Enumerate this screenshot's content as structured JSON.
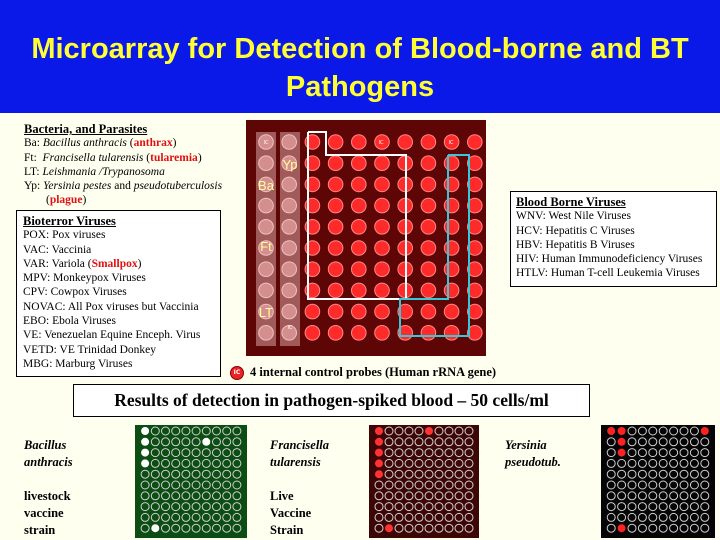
{
  "title": "Microarray for Detection of Blood-borne and BT Pathogens",
  "bacteria": {
    "heading": "Bacteria, and Parasites",
    "ba_prefix": "Ba: ",
    "ba_name": "Bacillus anthracis",
    "ba_open": " (",
    "ba_common": "anthrax",
    "ba_close": ")",
    "ft_prefix": "Ft:  ",
    "ft_name": "Francisella tularensis",
    "ft_open": " (",
    "ft_common": "tularemia",
    "ft_close": ")",
    "lt_prefix": "LT: ",
    "lt_name": "Leishmania /Trypanosoma",
    "yp_prefix": "Yp: ",
    "yp_name": "Yersinia pestes",
    "yp_and": " and ",
    "yp_name2": "pseudotuberculosis",
    "yp_open": "(",
    "yp_common": "plague",
    "yp_close": ")"
  },
  "bioterror": {
    "heading": "Bioterror Viruses",
    "items": [
      "POX: Pox viruses",
      "VAC: Vaccinia",
      "VAR_SPECIAL",
      "MPV: Monkeypox Viruses",
      "CPV: Cowpox Viruses",
      "NOVAC: All Pox viruses but Vaccinia",
      "EBO: Ebola Viruses",
      "VE: Venezuelan Equine Enceph. Virus",
      "VETD: VE Trinidad Donkey",
      "MBG: Marburg Viruses"
    ],
    "var_prefix": "VAR: Variola (",
    "var_highlight": "Smallpox",
    "var_suffix": ")"
  },
  "bloodborne": {
    "heading": "Blood Borne Viruses",
    "items": [
      "WNV: West Nile Viruses",
      "HCV: Hepatitis C Viruses",
      "HBV: Hepatitis B Viruses",
      "HIV: Human Immunodeficiency Viruses",
      "HTLV: Human T-cell Leukemia Viruses"
    ]
  },
  "array": {
    "labels": [
      "Yp",
      "Ba",
      "Ft",
      "LT"
    ],
    "ic_text": "IC",
    "colors": {
      "bg": "#5e0606",
      "spot": "#ff2a2a",
      "white_box": "#ffffff",
      "cyan_box": "#36c8d8"
    }
  },
  "ic_note": "4 internal control probes (Human rRNA gene)",
  "results_heading": "Results of detection in pathogen-spiked blood – 50 cells/ml",
  "results": [
    {
      "name1": "Bacillus",
      "name2": "anthracis",
      "notes": [
        "livestock",
        "vaccine",
        "strain"
      ],
      "bg": "#0b4d12",
      "hit": "#ffffff"
    },
    {
      "name1": "Francisella",
      "name2": "tularensis",
      "notes": [
        "Live",
        "Vaccine",
        "Strain"
      ],
      "bg": "#3c0606",
      "hit": "#ff3333"
    },
    {
      "name1": "Yersinia",
      "name2": "pseudotub.",
      "notes": [],
      "bg": "#050505",
      "hit": "#ff2222"
    }
  ]
}
